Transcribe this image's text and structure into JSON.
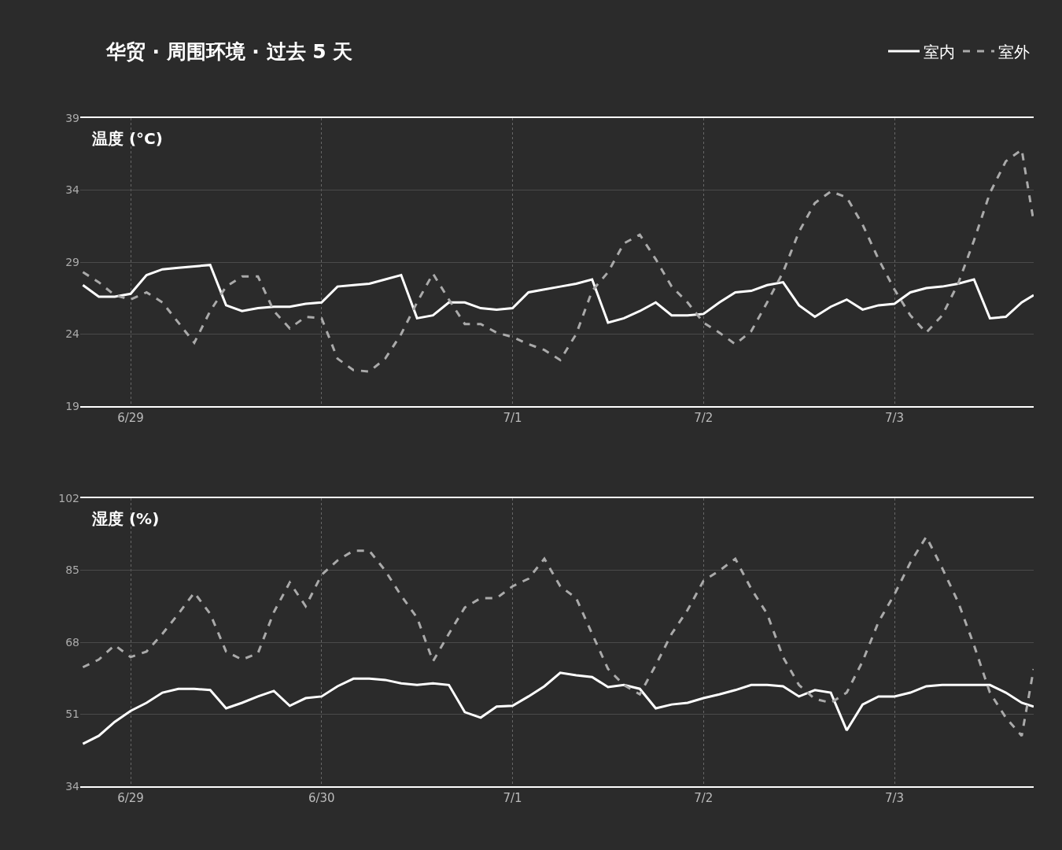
{
  "chart_data": [
    {
      "type": "line",
      "title": "华贸 · 周围环境 · 过去 5 天",
      "ylabel": "温度 (°C)",
      "legend": "top right",
      "grid": true,
      "x": [
        "--06-28T18:00",
        "--06-28T20:00",
        "--06-28T22:00",
        "--06-29T00:00",
        "--06-29T02:00",
        "--06-29T04:00",
        "--06-29T06:00",
        "--06-29T08:00",
        "--06-29T10:00",
        "--06-29T12:00",
        "--06-29T14:00",
        "--06-29T16:00",
        "--06-29T18:00",
        "--06-29T20:00",
        "--06-29T22:00",
        "--06-30T00:00",
        "--06-30T02:00",
        "--06-30T04:00",
        "--06-30T06:00",
        "--06-30T08:00",
        "--06-30T10:00",
        "--06-30T12:00",
        "--06-30T14:00",
        "--06-30T16:00",
        "--06-30T18:00",
        "--06-30T20:00",
        "--06-30T22:00",
        "--07-01T00:00",
        "--07-01T02:00",
        "--07-01T04:00",
        "--07-01T06:00",
        "--07-01T08:00",
        "--07-01T10:00",
        "--07-01T12:00",
        "--07-01T14:00",
        "--07-01T16:00",
        "--07-01T18:00",
        "--07-01T20:00",
        "--07-01T22:00",
        "--07-02T00:00",
        "--07-02T02:00",
        "--07-02T04:00",
        "--07-02T06:00",
        "--07-02T08:00",
        "--07-02T10:00",
        "--07-02T12:00",
        "--07-02T14:00",
        "--07-02T16:00",
        "--07-02T18:00",
        "--07-02T20:00",
        "--07-02T22:00",
        "--07-03T00:00",
        "--07-03T02:00",
        "--07-03T04:00",
        "--07-03T06:00",
        "--07-03T08:00",
        "--07-03T10:00",
        "--07-03T12:00",
        "--07-03T14:00",
        "--07-03T16:00",
        "--07-03T17:30"
      ],
      "xlim": [
        "--06-28T17:40",
        "--07-03T17:30"
      ],
      "xticks": [
        {
          "value": "--06-29",
          "label": "6/29"
        },
        {
          "value": "--06-30",
          "label": null
        },
        {
          "value": "--07-01",
          "label": "7/1"
        },
        {
          "value": "--07-02",
          "label": "7/2"
        },
        {
          "value": "--07-03",
          "label": "7/3"
        }
      ],
      "ylim": [
        19,
        39
      ],
      "yticks": [
        19,
        24,
        29,
        34,
        39
      ],
      "series": [
        {
          "name": "室内",
          "color": "#ffffff",
          "line_style": "solid",
          "values": [
            27.4,
            26.6,
            26.6,
            26.8,
            28.1,
            28.5,
            28.6,
            28.7,
            28.8,
            26.0,
            25.6,
            25.8,
            25.9,
            25.9,
            26.1,
            26.2,
            27.3,
            27.4,
            27.5,
            27.8,
            28.1,
            25.1,
            25.3,
            26.2,
            26.2,
            25.8,
            25.7,
            25.8,
            26.9,
            27.1,
            27.3,
            27.5,
            27.8,
            24.8,
            25.1,
            25.6,
            26.2,
            25.3,
            25.3,
            25.4,
            26.2,
            26.9,
            27.0,
            27.4,
            27.6,
            26.0,
            25.2,
            25.9,
            26.4,
            25.7,
            26.0,
            26.1,
            26.9,
            27.2,
            27.3,
            27.5,
            27.8,
            25.1,
            25.2,
            26.2,
            26.7
          ]
        },
        {
          "name": "室外",
          "color": "#aaaaaa",
          "line_style": "dashed",
          "values": [
            28.3,
            27.6,
            26.7,
            26.4,
            26.9,
            26.2,
            24.8,
            23.4,
            25.6,
            27.3,
            28.0,
            28.0,
            25.6,
            24.4,
            25.2,
            25.1,
            22.3,
            21.5,
            21.4,
            22.3,
            24.0,
            26.2,
            28.2,
            26.4,
            24.7,
            24.7,
            24.1,
            23.8,
            23.3,
            22.9,
            22.2,
            24.0,
            27.0,
            28.3,
            30.3,
            30.9,
            29.2,
            27.3,
            26.2,
            24.8,
            24.1,
            23.3,
            24.2,
            26.2,
            28.3,
            31.1,
            33.1,
            33.9,
            33.5,
            31.6,
            29.2,
            27.1,
            25.3,
            24.1,
            25.3,
            27.5,
            30.5,
            33.8,
            36.0,
            36.8,
            31.8
          ]
        }
      ]
    },
    {
      "type": "line",
      "ylabel": "湿度 (%)",
      "grid": true,
      "x": [
        "--06-28T18:00",
        "--06-28T20:00",
        "--06-28T22:00",
        "--06-29T00:00",
        "--06-29T02:00",
        "--06-29T04:00",
        "--06-29T06:00",
        "--06-29T08:00",
        "--06-29T10:00",
        "--06-29T12:00",
        "--06-29T14:00",
        "--06-29T16:00",
        "--06-29T18:00",
        "--06-29T20:00",
        "--06-29T22:00",
        "--06-30T00:00",
        "--06-30T02:00",
        "--06-30T04:00",
        "--06-30T06:00",
        "--06-30T08:00",
        "--06-30T10:00",
        "--06-30T12:00",
        "--06-30T14:00",
        "--06-30T16:00",
        "--06-30T18:00",
        "--06-30T20:00",
        "--06-30T22:00",
        "--07-01T00:00",
        "--07-01T02:00",
        "--07-01T04:00",
        "--07-01T06:00",
        "--07-01T08:00",
        "--07-01T10:00",
        "--07-01T12:00",
        "--07-01T14:00",
        "--07-01T16:00",
        "--07-01T18:00",
        "--07-01T20:00",
        "--07-01T22:00",
        "--07-02T00:00",
        "--07-02T02:00",
        "--07-02T04:00",
        "--07-02T06:00",
        "--07-02T08:00",
        "--07-02T10:00",
        "--07-02T12:00",
        "--07-02T14:00",
        "--07-02T16:00",
        "--07-02T18:00",
        "--07-02T20:00",
        "--07-02T22:00",
        "--07-03T00:00",
        "--07-03T02:00",
        "--07-03T04:00",
        "--07-03T06:00",
        "--07-03T08:00",
        "--07-03T10:00",
        "--07-03T12:00",
        "--07-03T14:00",
        "--07-03T16:00",
        "--07-03T17:30"
      ],
      "xlim": [
        "--06-28T17:40",
        "--07-03T17:30"
      ],
      "xticks": [
        {
          "value": "--06-29",
          "label": "6/29"
        },
        {
          "value": "--06-30",
          "label": "6/30"
        },
        {
          "value": "--07-01",
          "label": "7/1"
        },
        {
          "value": "--07-02",
          "label": "7/2"
        },
        {
          "value": "--07-03",
          "label": "7/3"
        }
      ],
      "ylim": [
        34,
        102
      ],
      "yticks": [
        34,
        51,
        68,
        85,
        102
      ],
      "series": [
        {
          "color": "#ffffff",
          "line_style": "solid",
          "values": [
            44.0,
            45.9,
            49.2,
            51.8,
            53.7,
            56.1,
            57.0,
            57.0,
            56.7,
            52.4,
            53.7,
            55.2,
            56.5,
            53.0,
            54.8,
            55.2,
            57.6,
            59.4,
            59.4,
            59.1,
            58.3,
            57.9,
            58.3,
            57.9,
            51.5,
            50.2,
            52.8,
            53.0,
            55.2,
            57.6,
            60.8,
            60.2,
            59.8,
            57.4,
            57.9,
            57.0,
            52.4,
            53.3,
            53.7,
            54.8,
            55.7,
            56.7,
            57.9,
            57.9,
            57.6,
            55.2,
            56.7,
            56.1,
            47.2,
            53.3,
            55.2,
            55.2,
            56.1,
            57.6,
            57.9,
            57.9,
            57.9,
            57.9,
            56.1,
            53.7,
            52.8
          ]
        },
        {
          "color": "#aaaaaa",
          "line_style": "dashed",
          "values": [
            62.1,
            63.9,
            67.3,
            64.5,
            65.8,
            70.0,
            74.7,
            79.7,
            74.7,
            65.8,
            63.9,
            65.4,
            75.1,
            82.1,
            76.5,
            83.9,
            87.3,
            89.6,
            89.6,
            84.9,
            79.0,
            73.8,
            63.5,
            70.0,
            76.2,
            78.4,
            78.4,
            81.2,
            83.0,
            87.7,
            81.2,
            78.4,
            70.0,
            61.7,
            57.9,
            55.7,
            62.6,
            70.0,
            75.6,
            82.5,
            84.9,
            87.7,
            80.6,
            74.7,
            64.5,
            57.9,
            54.6,
            53.7,
            56.1,
            63.5,
            72.8,
            79.3,
            86.8,
            92.9,
            85.5,
            77.5,
            67.3,
            56.1,
            50.2,
            45.9,
            61.7
          ]
        }
      ]
    }
  ]
}
